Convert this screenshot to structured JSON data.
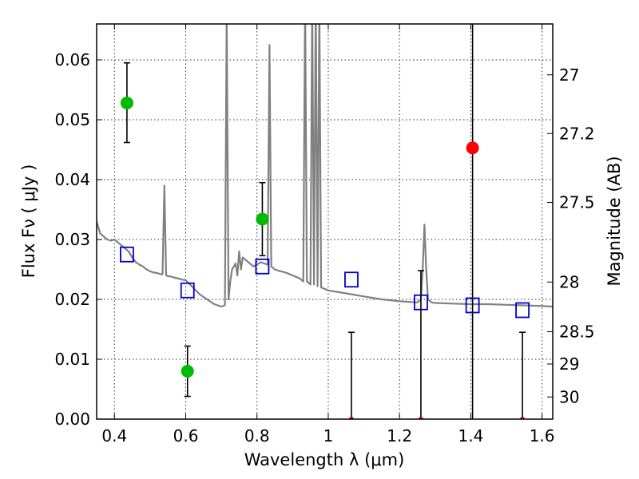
{
  "chart_data": {
    "type": "scatter",
    "title": "",
    "xlabel": "Wavelength  λ (μm)",
    "ylabel": "Flux  Fν  ( μJy )",
    "ylabel_right": "Magnitude (AB)",
    "xlim": [
      0.35,
      1.63
    ],
    "ylim": [
      0.0,
      0.066
    ],
    "grid": true,
    "x_ticks": [
      0.4,
      0.6,
      0.8,
      1.0,
      1.2,
      1.4,
      1.6
    ],
    "x_tick_labels": [
      "0.4",
      "0.6",
      "0.8",
      "1",
      "1.2",
      "1.4",
      "1.6"
    ],
    "y_ticks": [
      0.0,
      0.01,
      0.02,
      0.03,
      0.04,
      0.05,
      0.06
    ],
    "y_tick_labels": [
      "0.00",
      "0.01",
      "0.02",
      "0.03",
      "0.04",
      "0.05",
      "0.06"
    ],
    "right_ticks": [
      {
        "label": "27",
        "flux": 0.0575
      },
      {
        "label": "27.2",
        "flux": 0.0477
      },
      {
        "label": "27.5",
        "flux": 0.0362
      },
      {
        "label": "28",
        "flux": 0.0229
      },
      {
        "label": "28.5",
        "flux": 0.0146
      },
      {
        "label": "29",
        "flux": 0.0092
      },
      {
        "label": "30",
        "flux": 0.0037
      }
    ],
    "series": [
      {
        "name": "",
        "kind": "line",
        "color": "#808080",
        "x": [
          0.35,
          0.36,
          0.37,
          0.38,
          0.39,
          0.4,
          0.41,
          0.42,
          0.43,
          0.44,
          0.45,
          0.46,
          0.47,
          0.48,
          0.49,
          0.5,
          0.51,
          0.52,
          0.53,
          0.535,
          0.54,
          0.545,
          0.55,
          0.56,
          0.57,
          0.58,
          0.59,
          0.6,
          0.62,
          0.64,
          0.66,
          0.68,
          0.7,
          0.71,
          0.715,
          0.72,
          0.725,
          0.73,
          0.74,
          0.745,
          0.75,
          0.755,
          0.76,
          0.77,
          0.78,
          0.79,
          0.8,
          0.81,
          0.82,
          0.83,
          0.835,
          0.84,
          0.85,
          0.86,
          0.88,
          0.9,
          0.92,
          0.93,
          0.935,
          0.94,
          0.95,
          0.955,
          0.96,
          0.965,
          0.97,
          0.975,
          0.98,
          1.0,
          1.05,
          1.1,
          1.15,
          1.2,
          1.25,
          1.26,
          1.265,
          1.27,
          1.275,
          1.28,
          1.29,
          1.3,
          1.35,
          1.4,
          1.45,
          1.5,
          1.55,
          1.6,
          1.63
        ],
        "y": [
          0.033,
          0.031,
          0.0305,
          0.03,
          0.0298,
          0.03,
          0.0295,
          0.029,
          0.0285,
          0.028,
          0.027,
          0.0262,
          0.0258,
          0.0255,
          0.025,
          0.0247,
          0.0245,
          0.0244,
          0.0242,
          0.0242,
          0.039,
          0.024,
          0.0239,
          0.0238,
          0.0236,
          0.0235,
          0.0233,
          0.0232,
          0.022,
          0.0208,
          0.02,
          0.0192,
          0.0188,
          0.019,
          0.068,
          0.02,
          0.023,
          0.025,
          0.026,
          0.024,
          0.028,
          0.025,
          0.027,
          0.0265,
          0.026,
          0.0255,
          0.0258,
          0.0262,
          0.026,
          0.0258,
          0.0625,
          0.0255,
          0.025,
          0.0248,
          0.0245,
          0.024,
          0.0235,
          0.023,
          0.07,
          0.023,
          0.0225,
          0.07,
          0.0225,
          0.07,
          0.0222,
          0.07,
          0.022,
          0.0215,
          0.021,
          0.0205,
          0.02,
          0.0197,
          0.0195,
          0.02,
          0.025,
          0.0325,
          0.025,
          0.02,
          0.0195,
          0.0194,
          0.0193,
          0.0192,
          0.0192,
          0.0191,
          0.019,
          0.0189,
          0.0188
        ]
      },
      {
        "name": "",
        "kind": "open_square",
        "color": "#0000cc",
        "x": [
          0.435,
          0.605,
          0.815,
          1.065,
          1.26,
          1.405,
          1.545
        ],
        "y": [
          0.0275,
          0.0215,
          0.0255,
          0.0233,
          0.0195,
          0.019,
          0.0182
        ]
      },
      {
        "name": "",
        "kind": "filled_circle",
        "color": "#00bb00",
        "x": [
          0.435,
          0.605,
          0.815
        ],
        "y": [
          0.0528,
          0.008,
          0.0334
        ]
      },
      {
        "name": "",
        "kind": "filled_circle",
        "color": "#ff0000",
        "x": [
          1.405
        ],
        "y": [
          0.0453
        ]
      }
    ],
    "error_bars": [
      {
        "x": 0.435,
        "low": 0.0462,
        "high": 0.0595
      },
      {
        "x": 0.605,
        "low": 0.0038,
        "high": 0.0122
      },
      {
        "x": 0.815,
        "low": 0.0273,
        "high": 0.0395
      },
      {
        "x": 1.065,
        "low": 0.0,
        "high": 0.0145
      },
      {
        "x": 1.26,
        "low": 0.0,
        "high": 0.0248
      },
      {
        "x": 1.405,
        "low": 0.0,
        "high": 0.07
      },
      {
        "x": 1.545,
        "low": 0.0,
        "high": 0.0145
      }
    ],
    "upper_limit_markers": {
      "color": "#cc0000",
      "x": [
        1.065,
        1.26,
        1.545
      ],
      "y": [
        0.0,
        0.0,
        0.0
      ]
    }
  }
}
